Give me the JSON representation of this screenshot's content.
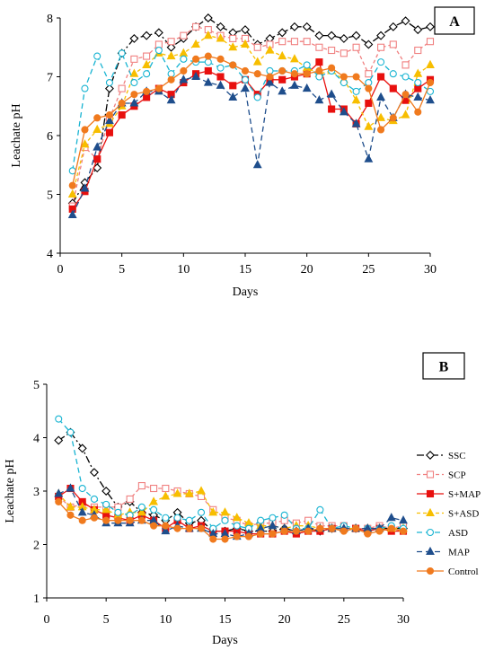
{
  "chart_data": [
    {
      "type": "line",
      "panel_label": "A",
      "xlabel": "Days",
      "ylabel": "Leachate pH",
      "xlim": [
        0,
        30
      ],
      "ylim": [
        4,
        8
      ],
      "xticks": [
        0,
        5,
        10,
        15,
        20,
        25,
        30
      ],
      "yticks": [
        4,
        5,
        6,
        7,
        8
      ],
      "grid": false,
      "x": [
        1,
        2,
        3,
        4,
        5,
        6,
        7,
        8,
        9,
        10,
        11,
        12,
        13,
        14,
        15,
        16,
        17,
        18,
        19,
        20,
        21,
        22,
        23,
        24,
        25,
        26,
        27,
        28,
        29,
        30
      ],
      "series": [
        {
          "name": "SSC",
          "color": "#000000",
          "dash": "8,3,2,3",
          "marker": "diamond",
          "filled": false,
          "values": [
            4.85,
            5.2,
            5.45,
            6.8,
            7.4,
            7.65,
            7.7,
            7.75,
            7.5,
            7.65,
            7.85,
            8.0,
            7.85,
            7.75,
            7.8,
            7.55,
            7.65,
            7.75,
            7.85,
            7.85,
            7.7,
            7.7,
            7.65,
            7.7,
            7.55,
            7.7,
            7.85,
            7.95,
            7.8,
            7.85
          ]
        },
        {
          "name": "SCP",
          "color": "#f08080",
          "dash": "4,3",
          "marker": "square",
          "filled": false,
          "values": [
            4.8,
            5.8,
            5.6,
            6.3,
            6.8,
            7.3,
            7.35,
            7.55,
            7.6,
            7.7,
            7.85,
            7.8,
            7.7,
            7.65,
            7.65,
            7.5,
            7.55,
            7.6,
            7.6,
            7.6,
            7.5,
            7.45,
            7.4,
            7.5,
            7.05,
            7.5,
            7.55,
            7.2,
            7.45,
            7.6
          ]
        },
        {
          "name": "S+MAP",
          "color": "#e8100e",
          "dash": "",
          "marker": "square",
          "filled": true,
          "values": [
            4.75,
            5.05,
            5.6,
            6.05,
            6.35,
            6.5,
            6.65,
            6.8,
            6.7,
            6.9,
            7.05,
            7.1,
            7.0,
            6.85,
            6.95,
            6.7,
            6.95,
            6.95,
            7.0,
            7.05,
            7.25,
            6.45,
            6.45,
            6.2,
            6.55,
            7.0,
            6.8,
            6.6,
            6.8,
            6.95
          ]
        },
        {
          "name": "S+ASD",
          "color": "#f7be00",
          "dash": "4,3",
          "marker": "triangle",
          "filled": true,
          "values": [
            5.0,
            5.85,
            6.1,
            6.2,
            6.5,
            7.05,
            7.2,
            7.4,
            7.35,
            7.4,
            7.55,
            7.7,
            7.65,
            7.5,
            7.55,
            7.25,
            7.45,
            7.35,
            7.3,
            7.15,
            7.05,
            7.1,
            6.95,
            6.6,
            6.15,
            6.3,
            6.25,
            6.35,
            7.05,
            7.2
          ]
        },
        {
          "name": "ASD",
          "color": "#19b4d2",
          "dash": "6,4",
          "marker": "circle",
          "filled": false,
          "values": [
            5.4,
            6.8,
            7.35,
            6.9,
            7.4,
            6.9,
            7.05,
            7.45,
            7.05,
            7.3,
            7.25,
            7.25,
            7.15,
            7.2,
            6.95,
            6.65,
            7.1,
            7.1,
            7.1,
            7.2,
            7.0,
            7.1,
            6.9,
            6.75,
            6.9,
            7.25,
            7.05,
            7.0,
            6.9,
            6.75
          ]
        },
        {
          "name": "MAP",
          "color": "#1f4e8c",
          "dash": "6,4",
          "marker": "triangle",
          "filled": true,
          "values": [
            4.65,
            5.1,
            5.8,
            6.25,
            6.55,
            6.55,
            6.75,
            6.75,
            6.6,
            6.95,
            7.0,
            6.9,
            6.85,
            6.65,
            6.8,
            5.5,
            6.9,
            6.75,
            6.85,
            6.8,
            6.6,
            6.7,
            6.4,
            6.2,
            5.6,
            6.65,
            6.3,
            6.7,
            6.65,
            6.6
          ]
        },
        {
          "name": "Control",
          "color": "#f07a1e",
          "dash": "",
          "marker": "circle",
          "filled": true,
          "values": [
            5.15,
            6.1,
            6.3,
            6.35,
            6.55,
            6.7,
            6.75,
            6.8,
            6.95,
            7.1,
            7.3,
            7.35,
            7.3,
            7.2,
            7.1,
            7.05,
            7.0,
            7.1,
            7.05,
            7.05,
            7.1,
            7.15,
            7.0,
            7.0,
            6.8,
            6.1,
            6.3,
            6.7,
            6.4,
            6.9
          ]
        }
      ]
    },
    {
      "type": "line",
      "panel_label": "B",
      "xlabel": "Days",
      "ylabel": "Leachate pH",
      "xlim": [
        0,
        30
      ],
      "ylim": [
        1,
        5
      ],
      "xticks": [
        0,
        5,
        10,
        15,
        20,
        25,
        30
      ],
      "yticks": [
        1,
        2,
        3,
        4,
        5
      ],
      "grid": false,
      "legend_position": "right",
      "x": [
        1,
        2,
        3,
        4,
        5,
        6,
        7,
        8,
        9,
        10,
        11,
        12,
        13,
        14,
        15,
        16,
        17,
        18,
        19,
        20,
        21,
        22,
        23,
        24,
        25,
        26,
        27,
        28,
        29,
        30
      ],
      "series": [
        {
          "name": "SSC",
          "color": "#000000",
          "dash": "8,3,2,3",
          "marker": "diamond",
          "filled": false,
          "values": [
            3.95,
            4.1,
            3.8,
            3.35,
            3.0,
            2.7,
            2.8,
            2.6,
            2.55,
            2.45,
            2.6,
            2.4,
            2.45,
            2.25,
            2.25,
            2.3,
            2.25,
            2.25,
            2.25,
            2.3,
            2.25,
            2.3,
            2.25,
            2.3,
            2.3,
            2.3,
            2.25,
            2.3,
            2.3,
            2.3
          ]
        },
        {
          "name": "SCP",
          "color": "#f08080",
          "dash": "4,3",
          "marker": "square",
          "filled": false,
          "values": [
            2.9,
            2.7,
            2.75,
            2.7,
            2.7,
            2.7,
            2.85,
            3.1,
            3.05,
            3.05,
            3.0,
            2.95,
            2.9,
            2.65,
            2.5,
            2.45,
            2.35,
            2.4,
            2.4,
            2.45,
            2.4,
            2.45,
            2.35,
            2.35,
            2.35,
            2.3,
            2.3,
            2.35,
            2.3,
            2.35
          ]
        },
        {
          "name": "S+MAP",
          "color": "#e8100e",
          "dash": "",
          "marker": "square",
          "filled": true,
          "values": [
            2.9,
            3.05,
            2.8,
            2.65,
            2.55,
            2.5,
            2.45,
            2.55,
            2.45,
            2.3,
            2.45,
            2.3,
            2.35,
            2.25,
            2.25,
            2.25,
            2.2,
            2.2,
            2.2,
            2.25,
            2.2,
            2.25,
            2.25,
            2.3,
            2.3,
            2.3,
            2.25,
            2.3,
            2.25,
            2.25
          ]
        },
        {
          "name": "S+ASD",
          "color": "#f7be00",
          "dash": "4,3",
          "marker": "triangle",
          "filled": true,
          "values": [
            2.95,
            2.7,
            2.7,
            2.65,
            2.65,
            2.55,
            2.6,
            2.6,
            2.8,
            2.9,
            2.95,
            2.95,
            3.0,
            2.6,
            2.6,
            2.5,
            2.4,
            2.35,
            2.35,
            2.3,
            2.35,
            2.35,
            2.3,
            2.3,
            2.3,
            2.3,
            2.3,
            2.3,
            2.3,
            2.3
          ]
        },
        {
          "name": "ASD",
          "color": "#19b4d2",
          "dash": "6,4",
          "marker": "circle",
          "filled": false,
          "values": [
            4.35,
            4.1,
            3.05,
            2.85,
            2.75,
            2.6,
            2.55,
            2.7,
            2.65,
            2.5,
            2.5,
            2.45,
            2.6,
            2.3,
            2.45,
            2.35,
            2.3,
            2.45,
            2.5,
            2.55,
            2.3,
            2.3,
            2.65,
            2.3,
            2.35,
            2.3,
            2.3,
            2.3,
            2.35,
            2.3
          ]
        },
        {
          "name": "MAP",
          "color": "#1f4e8c",
          "dash": "6,4",
          "marker": "triangle",
          "filled": true,
          "values": [
            2.95,
            3.05,
            2.6,
            2.55,
            2.4,
            2.4,
            2.4,
            2.45,
            2.45,
            2.25,
            2.35,
            2.3,
            2.3,
            2.2,
            2.2,
            2.15,
            2.2,
            2.3,
            2.35,
            2.3,
            2.25,
            2.3,
            2.3,
            2.3,
            2.3,
            2.3,
            2.3,
            2.3,
            2.5,
            2.45
          ]
        },
        {
          "name": "Control",
          "color": "#f07a1e",
          "dash": "",
          "marker": "circle",
          "filled": true,
          "values": [
            2.8,
            2.55,
            2.45,
            2.5,
            2.45,
            2.45,
            2.45,
            2.45,
            2.35,
            2.35,
            2.3,
            2.3,
            2.3,
            2.1,
            2.1,
            2.15,
            2.15,
            2.2,
            2.2,
            2.25,
            2.25,
            2.25,
            2.3,
            2.3,
            2.25,
            2.3,
            2.2,
            2.25,
            2.3,
            2.25
          ]
        }
      ]
    }
  ]
}
